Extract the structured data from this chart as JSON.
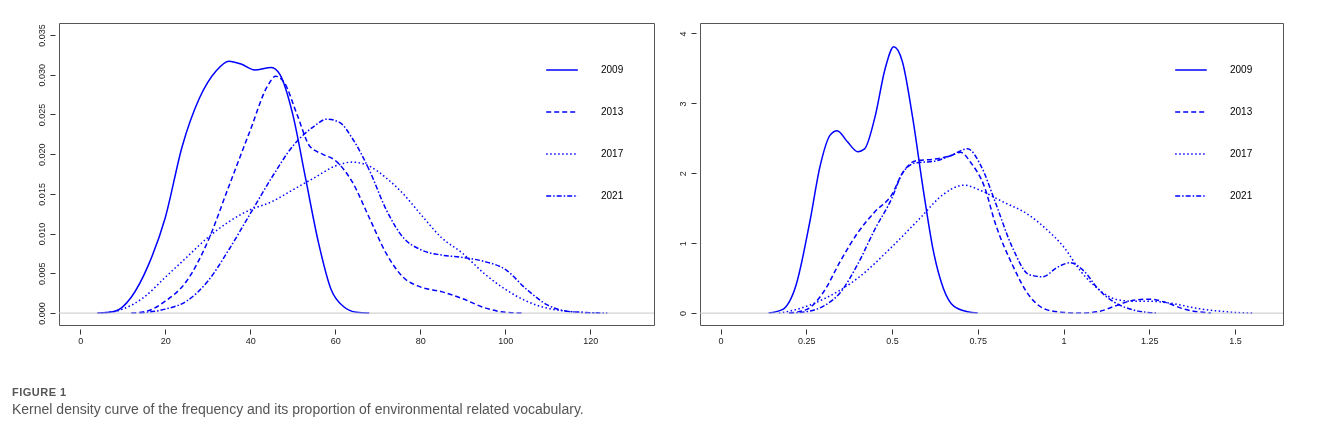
{
  "chart_data": [
    {
      "type": "line",
      "xlim": [
        -5,
        135
      ],
      "ylim": [
        -0.0015,
        0.0365
      ],
      "xticks": [
        0,
        20,
        40,
        60,
        80,
        100,
        120
      ],
      "yticks": [
        {
          "value": 0,
          "label": "0.000"
        },
        {
          "value": 0.005,
          "label": "0.005"
        },
        {
          "value": 0.01,
          "label": "0.010"
        },
        {
          "value": 0.015,
          "label": "0.015"
        },
        {
          "value": 0.02,
          "label": "0.020"
        },
        {
          "value": 0.025,
          "label": "0.025"
        },
        {
          "value": 0.03,
          "label": "0.030"
        },
        {
          "value": 0.035,
          "label": "0.035"
        }
      ],
      "grid": false,
      "legend": "top right",
      "marker": "none",
      "ref_lines": [
        {
          "axis": "y",
          "value": 0,
          "color": "#c8c8c8"
        }
      ],
      "annotations": [
        "FIGURE 1",
        "Kernel density curve of the frequency and its proportion of environmental related vocabulary."
      ],
      "series": [
        {
          "name": "2009",
          "color": "#0000ff",
          "line_style": "solid",
          "x": [
            4,
            8,
            12,
            16,
            20,
            24,
            28,
            32,
            35,
            38,
            41,
            45,
            47,
            50,
            53,
            56,
            59,
            62,
            65,
            68
          ],
          "values": [
            0,
            0.0002,
            0.002,
            0.006,
            0.012,
            0.021,
            0.027,
            0.0305,
            0.0317,
            0.0313,
            0.0306,
            0.0309,
            0.03,
            0.025,
            0.017,
            0.009,
            0.003,
            0.0008,
            0.0001,
            0
          ]
        },
        {
          "name": "2013",
          "color": "#0000ff",
          "line_style": "dashed",
          "x": [
            12,
            16,
            20,
            25,
            30,
            35,
            40,
            44,
            46,
            48,
            51,
            54,
            57,
            60,
            64,
            68,
            72,
            76,
            80,
            85,
            90,
            95,
            100,
            104
          ],
          "values": [
            0,
            0.0003,
            0.0015,
            0.004,
            0.009,
            0.016,
            0.023,
            0.0285,
            0.0298,
            0.029,
            0.025,
            0.021,
            0.02,
            0.0192,
            0.0165,
            0.012,
            0.0075,
            0.0045,
            0.0033,
            0.0027,
            0.0018,
            0.0007,
            0.0001,
            0
          ]
        },
        {
          "name": "2017",
          "color": "#0000ff",
          "line_style": "dotted",
          "x": [
            5,
            10,
            15,
            20,
            25,
            30,
            35,
            40,
            45,
            50,
            55,
            60,
            64,
            68,
            72,
            76,
            80,
            85,
            90,
            95,
            100,
            105,
            110,
            115,
            122
          ],
          "values": [
            0,
            0.0005,
            0.002,
            0.0045,
            0.007,
            0.0095,
            0.0115,
            0.013,
            0.014,
            0.0155,
            0.017,
            0.0185,
            0.019,
            0.0185,
            0.017,
            0.015,
            0.0125,
            0.0095,
            0.0075,
            0.005,
            0.003,
            0.0015,
            0.0006,
            0.0002,
            0
          ]
        },
        {
          "name": "2021",
          "color": "#0000ff",
          "line_style": "dashdot",
          "x": [
            14,
            20,
            25,
            30,
            35,
            40,
            45,
            50,
            55,
            58,
            61,
            64,
            68,
            72,
            76,
            80,
            85,
            90,
            95,
            100,
            105,
            110,
            115,
            124
          ],
          "values": [
            0,
            0.0005,
            0.0015,
            0.004,
            0.008,
            0.0125,
            0.017,
            0.021,
            0.0235,
            0.0244,
            0.024,
            0.022,
            0.018,
            0.013,
            0.0095,
            0.008,
            0.0073,
            0.007,
            0.0065,
            0.0055,
            0.003,
            0.001,
            0.0002,
            0
          ]
        }
      ]
    },
    {
      "type": "line",
      "xlim": [
        -0.06,
        1.64
      ],
      "ylim": [
        -0.17,
        4.15
      ],
      "xticks": [
        0,
        0.25,
        0.5,
        0.75,
        1,
        1.25,
        1.5
      ],
      "yticks": [
        0,
        1,
        2,
        3,
        4
      ],
      "grid": false,
      "legend": "top right",
      "marker": "none",
      "ref_lines": [
        {
          "axis": "y",
          "value": 0,
          "color": "#c8c8c8"
        }
      ],
      "series": [
        {
          "name": "2009",
          "color": "#0000ff",
          "line_style": "solid",
          "x": [
            0.14,
            0.18,
            0.22,
            0.26,
            0.29,
            0.32,
            0.34,
            0.37,
            0.4,
            0.42,
            0.45,
            0.48,
            0.505,
            0.53,
            0.56,
            0.59,
            0.62,
            0.65,
            0.68,
            0.72,
            0.75
          ],
          "values": [
            0,
            0.05,
            0.4,
            1.3,
            2.1,
            2.55,
            2.61,
            2.45,
            2.31,
            2.35,
            2.8,
            3.5,
            3.81,
            3.6,
            2.8,
            1.8,
            0.9,
            0.35,
            0.1,
            0.02,
            0
          ]
        },
        {
          "name": "2013",
          "color": "#0000ff",
          "line_style": "dashed",
          "x": [
            0.2,
            0.25,
            0.3,
            0.35,
            0.4,
            0.45,
            0.5,
            0.53,
            0.57,
            0.62,
            0.67,
            0.7,
            0.73,
            0.77,
            0.8,
            0.85,
            0.9,
            0.95,
            1.0,
            1.05,
            1.1,
            1.15,
            1.2,
            1.25,
            1.3,
            1.35,
            1.43
          ],
          "values": [
            0,
            0.05,
            0.3,
            0.75,
            1.15,
            1.45,
            1.7,
            2.0,
            2.18,
            2.2,
            2.25,
            2.3,
            2.15,
            1.8,
            1.3,
            0.7,
            0.25,
            0.05,
            0.01,
            0,
            0.02,
            0.1,
            0.18,
            0.2,
            0.15,
            0.06,
            0
          ]
        },
        {
          "name": "2017",
          "color": "#0000ff",
          "line_style": "dotted",
          "x": [
            0.17,
            0.22,
            0.3,
            0.4,
            0.5,
            0.58,
            0.65,
            0.71,
            0.76,
            0.82,
            0.9,
            0.95,
            1.0,
            1.05,
            1.1,
            1.15,
            1.2,
            1.25,
            1.3,
            1.4,
            1.5,
            1.55
          ],
          "values": [
            0,
            0.05,
            0.2,
            0.5,
            0.95,
            1.35,
            1.7,
            1.83,
            1.75,
            1.6,
            1.4,
            1.2,
            0.95,
            0.6,
            0.35,
            0.2,
            0.17,
            0.17,
            0.15,
            0.06,
            0.01,
            0
          ]
        },
        {
          "name": "2021",
          "color": "#0000ff",
          "line_style": "dashdot",
          "x": [
            0.2,
            0.25,
            0.3,
            0.35,
            0.4,
            0.45,
            0.5,
            0.53,
            0.57,
            0.62,
            0.67,
            0.72,
            0.76,
            0.8,
            0.85,
            0.9,
            0.94,
            0.98,
            1.02,
            1.06,
            1.1,
            1.15,
            1.2,
            1.27
          ],
          "values": [
            0,
            0.02,
            0.1,
            0.3,
            0.7,
            1.2,
            1.65,
            2.0,
            2.15,
            2.17,
            2.25,
            2.35,
            2.1,
            1.6,
            0.95,
            0.55,
            0.52,
            0.65,
            0.72,
            0.6,
            0.35,
            0.15,
            0.05,
            0
          ]
        }
      ]
    }
  ]
}
